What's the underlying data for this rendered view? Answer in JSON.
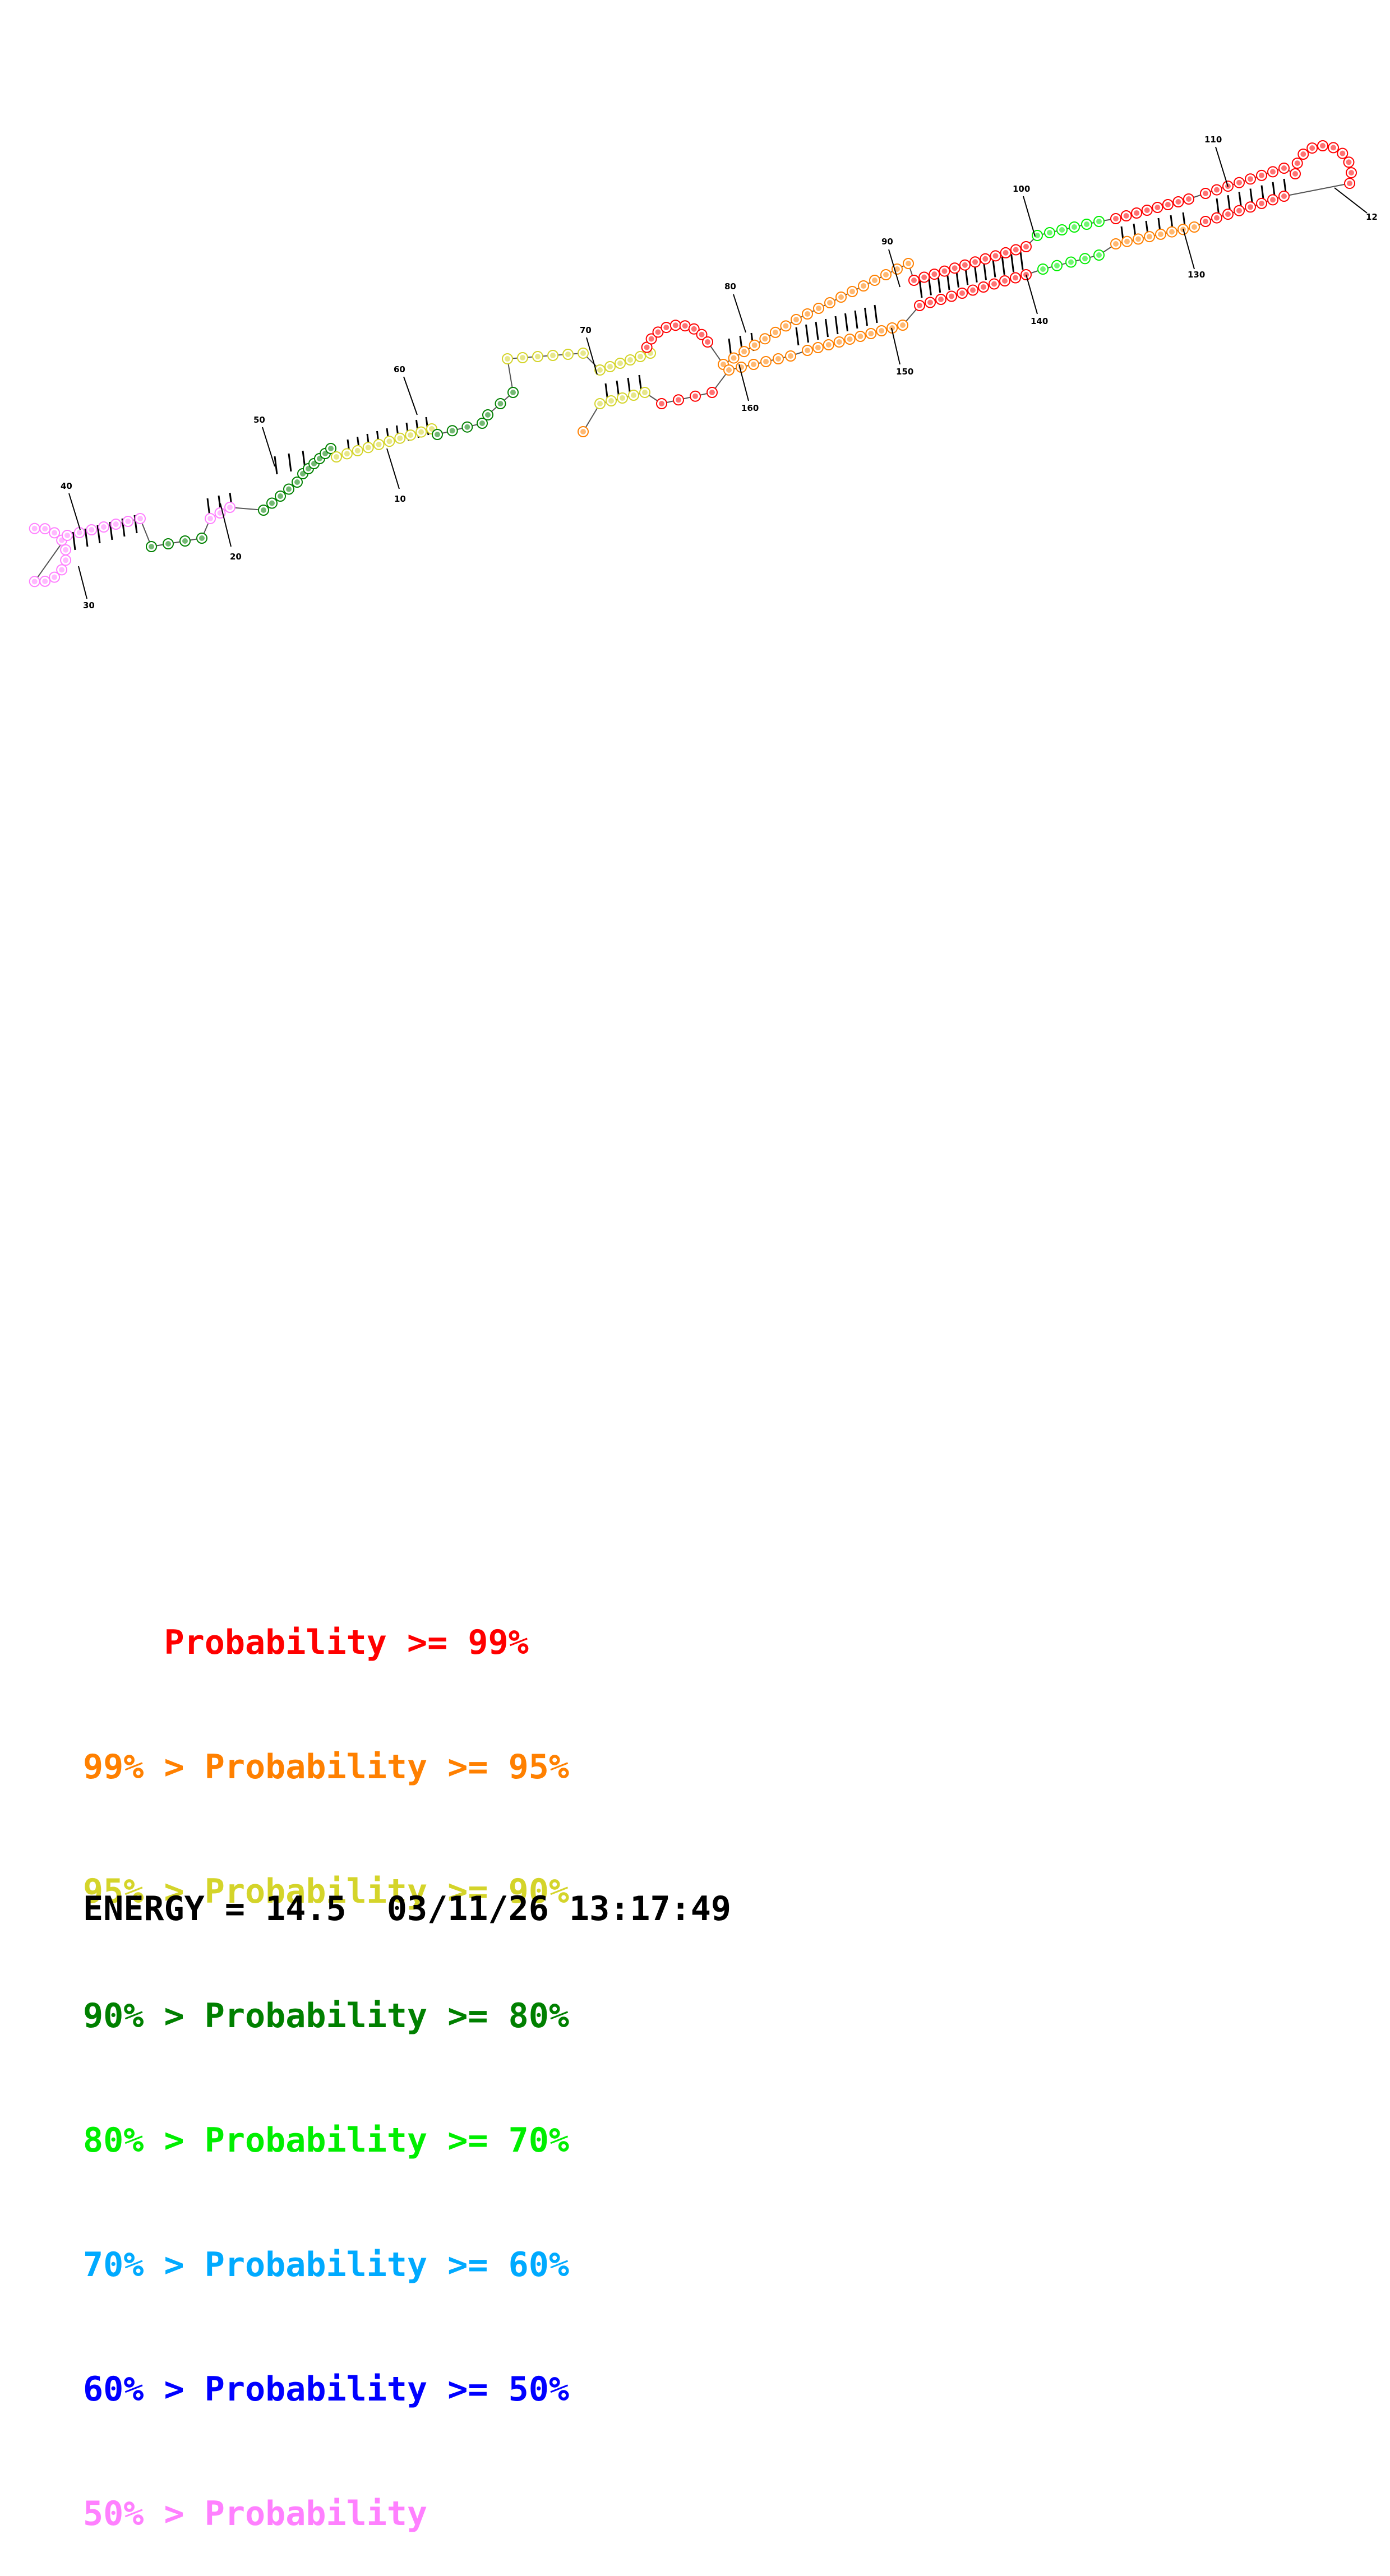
{
  "diagram": {
    "position_labels": [
      "10",
      "20",
      "30",
      "40",
      "50",
      "60",
      "70",
      "80",
      "90",
      "100",
      "110",
      "12",
      "130",
      "140",
      "150",
      "160"
    ],
    "probability_colors": {
      "p99": "#ff0000",
      "p95": "#ff8000",
      "p90": "#d4d42a",
      "p80": "#008000",
      "p70": "#00ee00",
      "p60": "#00aaff",
      "p50": "#0000ff",
      "plt50": "#ff80ff"
    }
  },
  "legend": [
    {
      "prefix": "    ",
      "text": "Probability >= 99%",
      "color": "#ff0000"
    },
    {
      "prefix": "99% > ",
      "text": "Probability >= 95%",
      "color": "#ff8000"
    },
    {
      "prefix": "95% > ",
      "text": "Probability >= 90%",
      "color": "#d4d42a"
    },
    {
      "prefix": "90% > ",
      "text": "Probability >= 80%",
      "color": "#008000"
    },
    {
      "prefix": "80% > ",
      "text": "Probability >= 70%",
      "color": "#00ee00"
    },
    {
      "prefix": "70% > ",
      "text": "Probability >= 60%",
      "color": "#00aaff"
    },
    {
      "prefix": "60% > ",
      "text": "Probability >= 50%",
      "color": "#0000ff"
    },
    {
      "prefix": "50% > ",
      "text": "Probability",
      "color": "#ff80ff"
    }
  ],
  "footer": {
    "energy": "ENERGY = 14.5",
    "timestamp": "03/11/26 13:17:49"
  }
}
